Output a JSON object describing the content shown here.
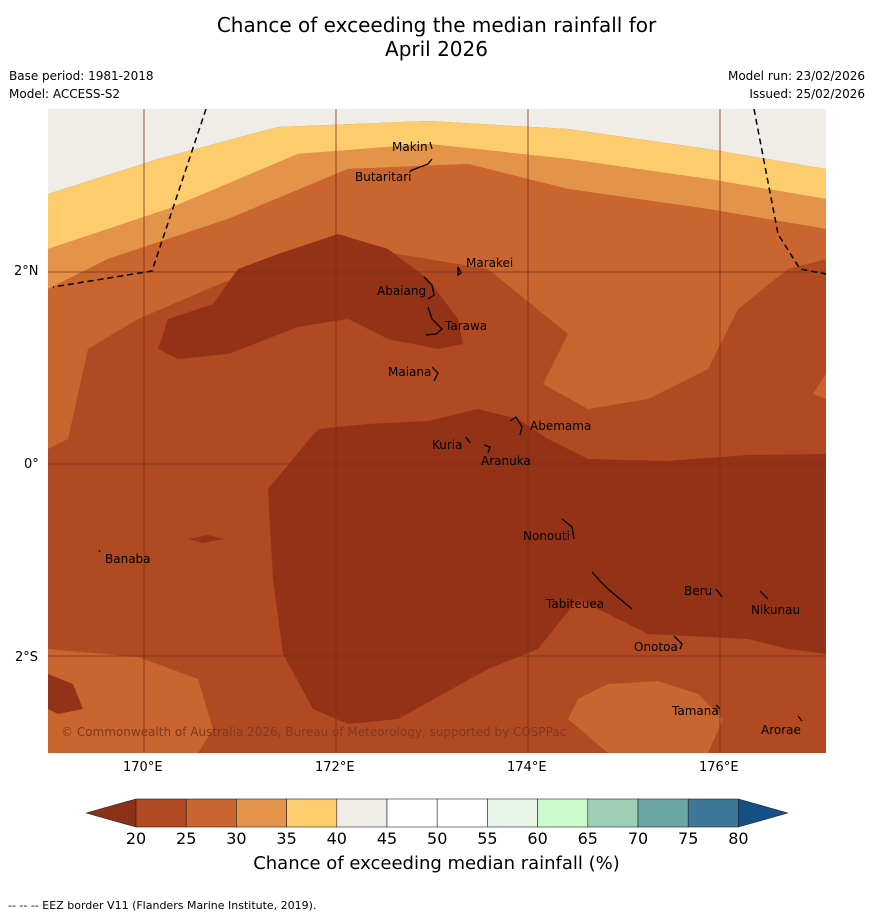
{
  "title": {
    "line1": "Chance of exceeding the median rainfall for",
    "line2": "April 2026"
  },
  "meta": {
    "base_period": "Base period: 1981-2018",
    "model": "Model: ACCESS-S2",
    "model_run": "Model run: 23/02/2026",
    "issued": "Issued: 25/02/2026"
  },
  "axes": {
    "lat_ticks": [
      "2°N",
      "0°",
      "2°S"
    ],
    "lon_ticks": [
      "170°E",
      "172°E",
      "174°E",
      "176°E"
    ]
  },
  "places": [
    "Makin",
    "Butaritari",
    "Marakei",
    "Abaiang",
    "Tarawa",
    "Maiana",
    "Abemama",
    "Kuria",
    "Aranuka",
    "Banaba",
    "Nonouti",
    "Beru",
    "Nikunau",
    "Tabiteuea",
    "Onotoa",
    "Tamana",
    "Arorae"
  ],
  "copyright": "© Commonwealth of Australia 2026, Bureau of Meteorology, supported by COSPPac",
  "colorbar": {
    "ticks": [
      "20",
      "25",
      "30",
      "35",
      "40",
      "45",
      "50",
      "55",
      "60",
      "65",
      "70",
      "75",
      "80"
    ],
    "colors": [
      "#8b3118",
      "#b14a22",
      "#cb6530",
      "#e3944a",
      "#fdcc6d",
      "#f0ede8",
      "#ffffff",
      "#ffffff",
      "#e8f5e8",
      "#ccfacc",
      "#9ccfb6",
      "#6ba6a6",
      "#3d7899",
      "#144f85"
    ],
    "label": "Chance of exceeding median rainfall (%)"
  },
  "footer": "--  --  -- EEZ border V11 (Flanders Marine Institute, 2019)."
}
